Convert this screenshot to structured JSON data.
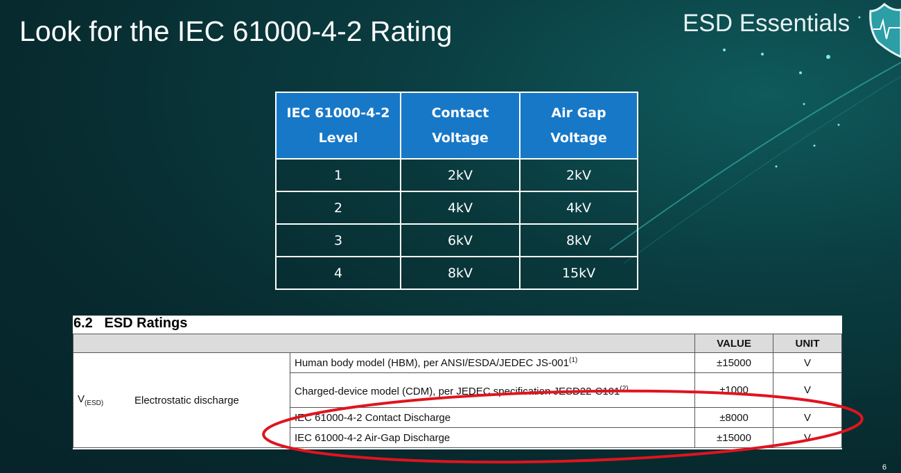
{
  "slide": {
    "title": "Look for the IEC 61000-4-2 Rating",
    "brand": "ESD Essentials",
    "page_number": "6",
    "logo_icon": "shield-heartbeat-icon"
  },
  "iec_table": {
    "headers": [
      "IEC 61000-4-2 Level",
      "Contact Voltage",
      "Air Gap Voltage"
    ],
    "header_lines": [
      [
        "IEC 61000-4-2",
        "Level"
      ],
      [
        "Contact",
        "Voltage"
      ],
      [
        "Air Gap",
        "Voltage"
      ]
    ],
    "rows": [
      [
        "1",
        "2kV",
        "2kV"
      ],
      [
        "2",
        "4kV",
        "4kV"
      ],
      [
        "3",
        "6kV",
        "8kV"
      ],
      [
        "4",
        "8kV",
        "15kV"
      ]
    ],
    "header_color": "#1778c8"
  },
  "esd_ratings": {
    "section_title": "6.2   ESD Ratings",
    "col_value": "VALUE",
    "col_unit": "UNIT",
    "symbol": "V",
    "symbol_sub": "(ESD)",
    "parameter": "Electrostatic discharge",
    "rows": [
      {
        "condition": "Human body model (HBM), per ANSI/ESDA/JEDEC JS-001",
        "note": "(1)",
        "value": "±15000",
        "unit": "V"
      },
      {
        "condition": "Charged-device model (CDM), per JEDEC specification JESD22-C101",
        "note": "(2)",
        "value": "±1000",
        "unit": "V"
      },
      {
        "condition": "IEC 61000-4-2 Contact Discharge",
        "note": "",
        "value": "±8000",
        "unit": "V"
      },
      {
        "condition": "IEC 61000-4-2 Air-Gap Discharge",
        "note": "",
        "value": "±15000",
        "unit": "V"
      }
    ],
    "highlight_color": "#e0141e"
  }
}
